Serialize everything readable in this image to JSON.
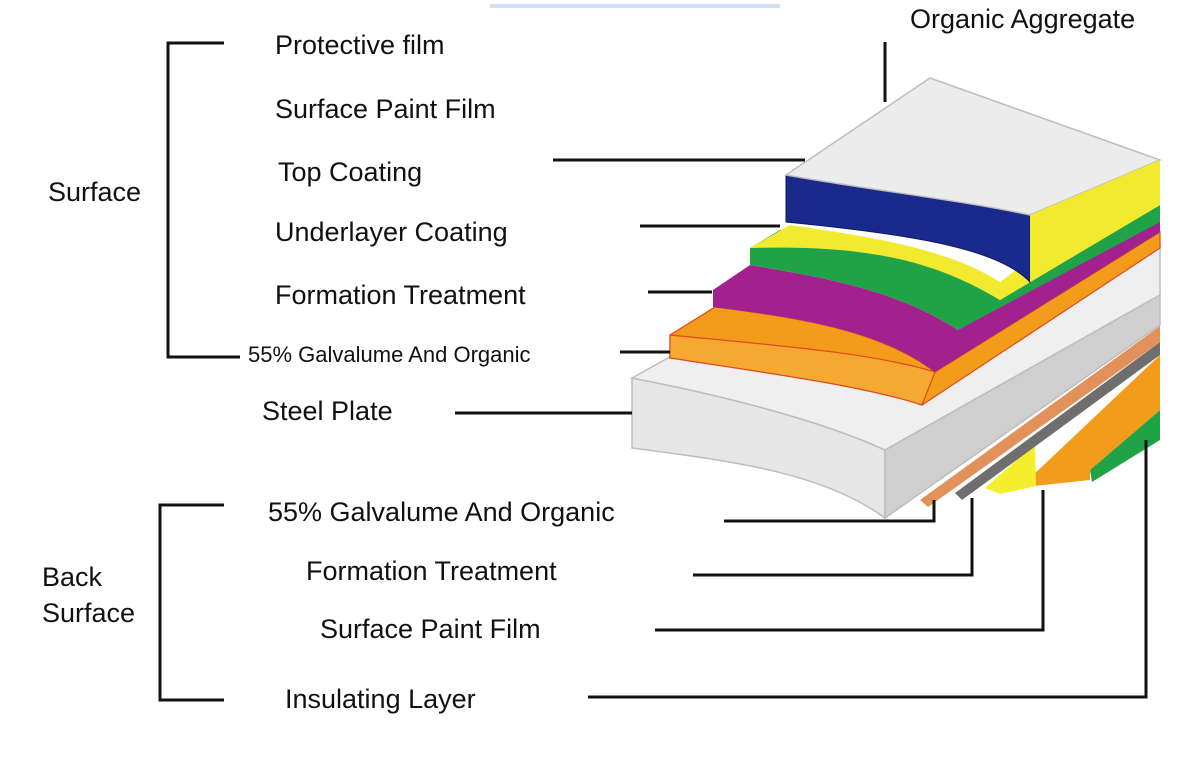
{
  "groups": {
    "surface": "Surface",
    "back_surface_line1": "Back",
    "back_surface_line2": "Surface"
  },
  "surface_layers": [
    {
      "label": "Protective film"
    },
    {
      "label": "Surface Paint Film"
    },
    {
      "label": "Top Coating"
    },
    {
      "label": "Underlayer Coating"
    },
    {
      "label": "Formation Treatment"
    },
    {
      "label": "55% Galvalume And Organic"
    }
  ],
  "core_layer": {
    "label": "Steel Plate"
  },
  "top_label": {
    "label": "Organic Aggregate"
  },
  "back_layers": [
    {
      "label": "55% Galvalume And Organic"
    },
    {
      "label": "Formation Treatment"
    },
    {
      "label": "Surface Paint Film"
    },
    {
      "label": "Insulating Layer"
    }
  ],
  "colors": {
    "steel": "#e6e6e6",
    "steel_edge": "#cfcfcf",
    "galvalume": "#f39c1c",
    "formation": "#a3218e",
    "underlayer_green": "#1fa346",
    "yellow": "#f2ea2f",
    "navy": "#1a2a8c",
    "aggregate_top": "#ececec",
    "back_copper": "#e3915a",
    "back_gray": "#6e6e6e",
    "back_yellow": "#f4ee2c",
    "back_orange": "#f39c1c",
    "back_green": "#1fa346"
  }
}
